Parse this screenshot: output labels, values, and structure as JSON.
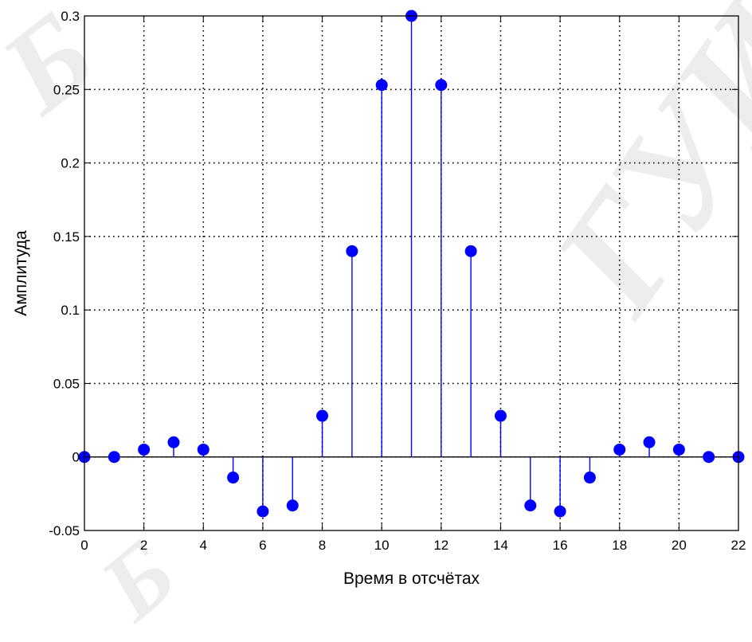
{
  "watermark": {
    "text_1": "Б",
    "text_2": "ГУИР",
    "text_3": "Б"
  },
  "chart_data": {
    "type": "stem",
    "title": "",
    "xlabel": "Время в отсчётах",
    "ylabel": "Амплитуда",
    "xlim": [
      0,
      22
    ],
    "ylim": [
      -0.05,
      0.3
    ],
    "x_ticks": [
      0,
      2,
      4,
      6,
      8,
      10,
      12,
      14,
      16,
      18,
      20,
      22
    ],
    "x_tick_labels": [
      "0",
      "2",
      "4",
      "6",
      "8",
      "10",
      "12",
      "14",
      "16",
      "18",
      "20",
      "22"
    ],
    "y_ticks": [
      -0.05,
      0,
      0.05,
      0.1,
      0.15,
      0.2,
      0.25,
      0.3
    ],
    "y_tick_labels": [
      "-0.05",
      "0",
      "0.05",
      "0.1",
      "0.15",
      "0.2",
      "0.25",
      "0.3"
    ],
    "grid": true,
    "legend": "none",
    "color": "#0000ff",
    "x": [
      0,
      1,
      2,
      3,
      4,
      5,
      6,
      7,
      8,
      9,
      10,
      11,
      12,
      13,
      14,
      15,
      16,
      17,
      18,
      19,
      20,
      21,
      22
    ],
    "values": [
      0,
      0,
      0.005,
      0.01,
      0.005,
      -0.014,
      -0.037,
      -0.033,
      0.028,
      0.14,
      0.253,
      0.3,
      0.253,
      0.14,
      0.028,
      -0.033,
      -0.037,
      -0.014,
      0.005,
      0.01,
      0.005,
      0,
      0
    ]
  }
}
